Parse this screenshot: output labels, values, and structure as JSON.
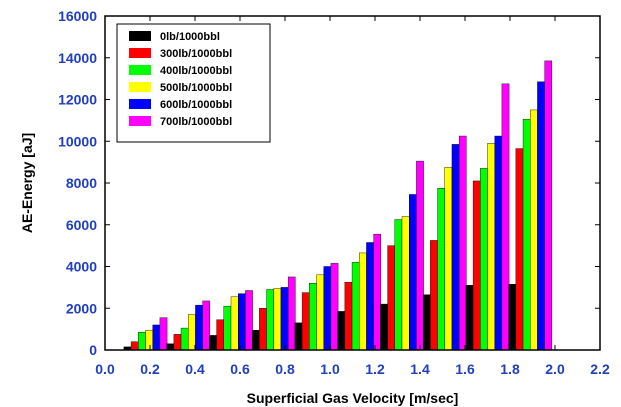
{
  "chart_data": {
    "type": "bar",
    "title": "",
    "xlabel": "Superficial Gas Velocity [m/sec]",
    "ylabel": "AE-Energy [aJ]",
    "xlim": [
      0.0,
      2.2
    ],
    "ylim": [
      0,
      16000
    ],
    "x_ticks": [
      "0.0",
      "0.2",
      "0.4",
      "0.6",
      "0.8",
      "1.0",
      "1.2",
      "1.4",
      "1.6",
      "1.8",
      "2.0",
      "2.2"
    ],
    "y_ticks": [
      "0",
      "2000",
      "4000",
      "6000",
      "8000",
      "10000",
      "12000",
      "14000",
      "16000"
    ],
    "tick_label_color": "#1f3fbf",
    "grid": false,
    "legend_position": "top-left",
    "x": [
      0.18,
      0.37,
      0.56,
      0.75,
      0.94,
      1.13,
      1.32,
      1.51,
      1.7,
      1.89
    ],
    "series": [
      {
        "name": "0lb/1000bbl",
        "color": "#000000",
        "values": [
          150,
          300,
          700,
          950,
          1300,
          1850,
          2200,
          2650,
          3100,
          3150
        ]
      },
      {
        "name": "300lb/1000bbl",
        "color": "#ff0000",
        "values": [
          400,
          750,
          1450,
          2000,
          2750,
          3250,
          5000,
          5250,
          8100,
          9650
        ]
      },
      {
        "name": "400lb/1000bbl",
        "color": "#00ff00",
        "values": [
          850,
          1050,
          2100,
          2900,
          3200,
          4200,
          6250,
          7750,
          8700,
          11050
        ]
      },
      {
        "name": "500lb/1000bbl",
        "color": "#ffff00",
        "values": [
          950,
          1700,
          2550,
          2950,
          3600,
          4650,
          6400,
          8750,
          9900,
          11500
        ]
      },
      {
        "name": "600lb/1000bbl",
        "color": "#0000ff",
        "values": [
          1200,
          2150,
          2700,
          3000,
          4000,
          5150,
          7450,
          9850,
          10250,
          12850
        ]
      },
      {
        "name": "700lb/1000bbl",
        "color": "#ff00ff",
        "values": [
          1550,
          2350,
          2850,
          3500,
          4150,
          5550,
          9050,
          10250,
          12750,
          13850
        ]
      }
    ]
  }
}
